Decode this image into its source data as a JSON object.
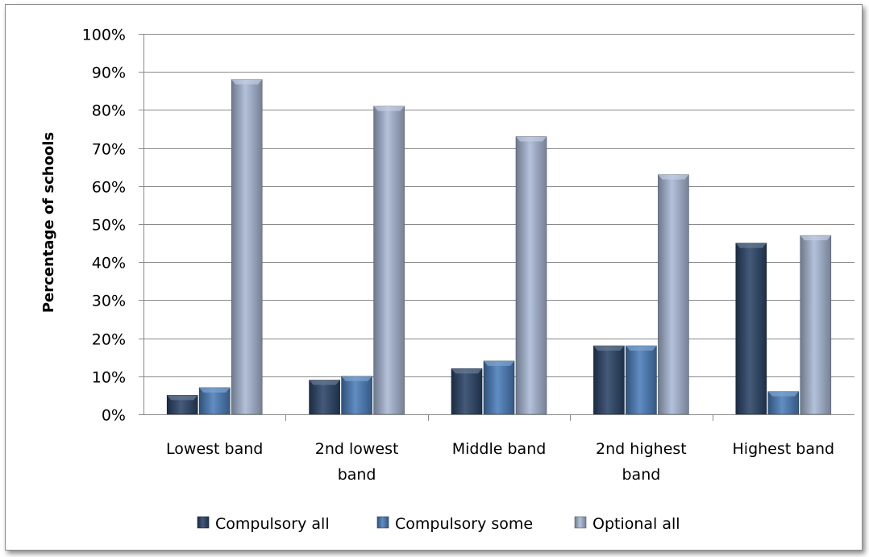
{
  "chart_data": {
    "type": "bar",
    "title": "",
    "xlabel": "",
    "ylabel": "Percentage of schools",
    "ylim": [
      0,
      100
    ],
    "y_ticks": [
      "0%",
      "10%",
      "20%",
      "30%",
      "40%",
      "50%",
      "60%",
      "70%",
      "80%",
      "90%",
      "100%"
    ],
    "categories": [
      [
        "Lowest band"
      ],
      [
        "2nd lowest",
        "band"
      ],
      [
        "Middle band"
      ],
      [
        "2nd highest",
        "band"
      ],
      [
        "Highest band"
      ]
    ],
    "series": [
      {
        "name": "Compulsory all",
        "color": "#2a4467",
        "values": [
          5,
          9,
          12,
          18,
          45
        ]
      },
      {
        "name": "Compulsory some",
        "color": "#4a7ebb",
        "values": [
          7,
          10,
          14,
          18,
          6
        ]
      },
      {
        "name": "Optional all",
        "color": "#a9b8d6",
        "values": [
          88,
          81,
          73,
          63,
          47
        ]
      }
    ],
    "grid": true,
    "legend": "bottom"
  }
}
